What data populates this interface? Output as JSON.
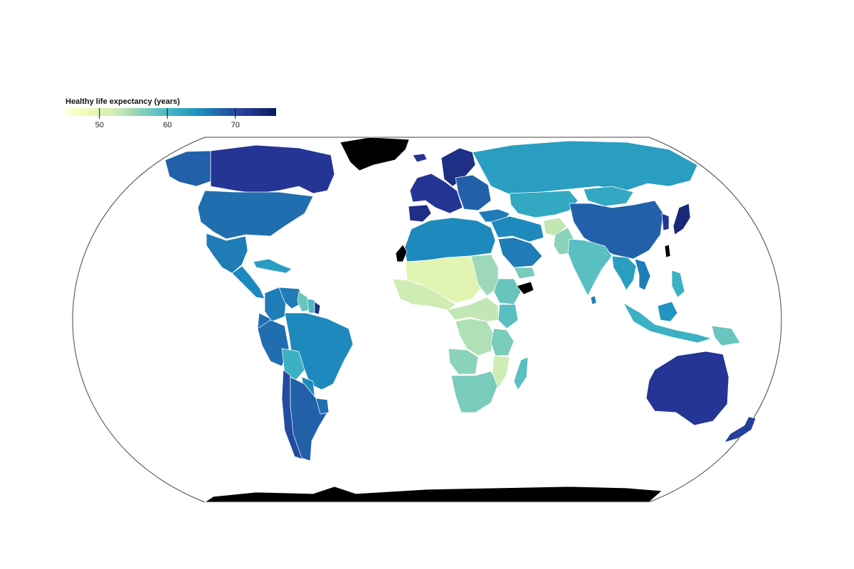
{
  "legend": {
    "title": "Healthy life expectancy (years)",
    "domain": [
      45,
      76
    ],
    "ticks": [
      {
        "value": 50,
        "label": "50"
      },
      {
        "value": 60,
        "label": "60"
      },
      {
        "value": 70,
        "label": "70"
      }
    ],
    "colors": [
      "#ffffd9",
      "#edf8b1",
      "#c7e9b4",
      "#7fcdbb",
      "#41b6c4",
      "#1d91c0",
      "#225ea8",
      "#253494",
      "#081d58"
    ]
  },
  "map": {
    "projection": "equal-earth",
    "no_data_color": "#000000",
    "regions": [
      {
        "name": "Canada",
        "value": 72
      },
      {
        "name": "Alaska",
        "value": 68
      },
      {
        "name": "United States",
        "value": 67
      },
      {
        "name": "Mexico",
        "value": 66
      },
      {
        "name": "Central America",
        "value": 65
      },
      {
        "name": "Caribbean",
        "value": 63
      },
      {
        "name": "Colombia",
        "value": 66
      },
      {
        "name": "Venezuela",
        "value": 66
      },
      {
        "name": "Guyana",
        "value": 58
      },
      {
        "name": "Suriname",
        "value": 60
      },
      {
        "name": "French Guiana",
        "value": 73
      },
      {
        "name": "Ecuador",
        "value": 67
      },
      {
        "name": "Peru",
        "value": 67
      },
      {
        "name": "Brazil",
        "value": 65
      },
      {
        "name": "Bolivia",
        "value": 61
      },
      {
        "name": "Paraguay",
        "value": 65
      },
      {
        "name": "Chile",
        "value": 70
      },
      {
        "name": "Argentina",
        "value": 68
      },
      {
        "name": "Uruguay",
        "value": 67
      },
      {
        "name": "Greenland",
        "value": null
      },
      {
        "name": "Iceland",
        "value": 72
      },
      {
        "name": "Scandinavia",
        "value": 73
      },
      {
        "name": "Western Europe",
        "value": 72
      },
      {
        "name": "Spain",
        "value": 73
      },
      {
        "name": "Eastern Europe",
        "value": 68
      },
      {
        "name": "Turkey",
        "value": 66
      },
      {
        "name": "Russia",
        "value": 63
      },
      {
        "name": "Central Asia",
        "value": 62
      },
      {
        "name": "Mongolia",
        "value": 62
      },
      {
        "name": "China",
        "value": 68
      },
      {
        "name": "Korea",
        "value": 72
      },
      {
        "name": "Japan",
        "value": 74
      },
      {
        "name": "Taiwan",
        "value": null
      },
      {
        "name": "Middle East",
        "value": 65
      },
      {
        "name": "Saudi Arabia",
        "value": 66
      },
      {
        "name": "Yemen",
        "value": 57
      },
      {
        "name": "Afghanistan",
        "value": 53
      },
      {
        "name": "Pakistan",
        "value": 56
      },
      {
        "name": "India",
        "value": 59
      },
      {
        "name": "Sri Lanka",
        "value": 66
      },
      {
        "name": "Southeast Asia",
        "value": 63
      },
      {
        "name": "Vietnam",
        "value": 66
      },
      {
        "name": "Indonesia",
        "value": 61
      },
      {
        "name": "Borneo",
        "value": 64
      },
      {
        "name": "Papua New Guinea",
        "value": 58
      },
      {
        "name": "Philippines",
        "value": 61
      },
      {
        "name": "Australia",
        "value": 72
      },
      {
        "name": "New Zealand",
        "value": 71
      },
      {
        "name": "North Africa",
        "value": 65
      },
      {
        "name": "Western Sahara",
        "value": null
      },
      {
        "name": "Sahel",
        "value": 50
      },
      {
        "name": "West Africa",
        "value": 52
      },
      {
        "name": "Sudan",
        "value": 55
      },
      {
        "name": "Ethiopia",
        "value": 58
      },
      {
        "name": "Somalia",
        "value": null
      },
      {
        "name": "Kenya",
        "value": 59
      },
      {
        "name": "Central Africa",
        "value": 53
      },
      {
        "name": "DR Congo",
        "value": 54
      },
      {
        "name": "Tanzania",
        "value": 57
      },
      {
        "name": "Angola",
        "value": 56
      },
      {
        "name": "Southern Africa",
        "value": 57
      },
      {
        "name": "Mozambique",
        "value": 52
      },
      {
        "name": "Madagascar",
        "value": 59
      },
      {
        "name": "Antarctica",
        "value": null
      }
    ]
  }
}
